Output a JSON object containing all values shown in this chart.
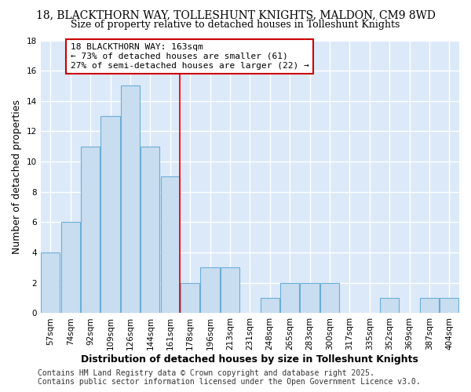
{
  "title": "18, BLACKTHORN WAY, TOLLESHUNT KNIGHTS, MALDON, CM9 8WD",
  "subtitle": "Size of property relative to detached houses in Tolleshunt Knights",
  "xlabel": "Distribution of detached houses by size in Tolleshunt Knights",
  "ylabel": "Number of detached properties",
  "bin_labels": [
    "57sqm",
    "74sqm",
    "92sqm",
    "109sqm",
    "126sqm",
    "144sqm",
    "161sqm",
    "178sqm",
    "196sqm",
    "213sqm",
    "231sqm",
    "248sqm",
    "265sqm",
    "283sqm",
    "300sqm",
    "317sqm",
    "335sqm",
    "352sqm",
    "369sqm",
    "387sqm",
    "404sqm"
  ],
  "bar_values": [
    4,
    6,
    11,
    13,
    15,
    11,
    9,
    2,
    3,
    3,
    0,
    1,
    2,
    2,
    2,
    0,
    0,
    1,
    0,
    1,
    1
  ],
  "bar_color": "#c9ddf0",
  "bar_edge_color": "#6aaed6",
  "red_line_x": 6.5,
  "annotation_text": "18 BLACKTHORN WAY: 163sqm\n← 73% of detached houses are smaller (61)\n27% of semi-detached houses are larger (22) →",
  "annotation_box_color": "#ffffff",
  "annotation_box_edge_color": "#cc0000",
  "ylim": [
    0,
    18
  ],
  "yticks": [
    0,
    2,
    4,
    6,
    8,
    10,
    12,
    14,
    16,
    18
  ],
  "footer": "Contains HM Land Registry data © Crown copyright and database right 2025.\nContains public sector information licensed under the Open Government Licence v3.0.",
  "fig_bg_color": "#ffffff",
  "plot_bg_color": "#dce9f8",
  "grid_color": "#ffffff",
  "title_fontsize": 10,
  "subtitle_fontsize": 9,
  "axis_label_fontsize": 9,
  "tick_fontsize": 7.5,
  "footer_fontsize": 7
}
